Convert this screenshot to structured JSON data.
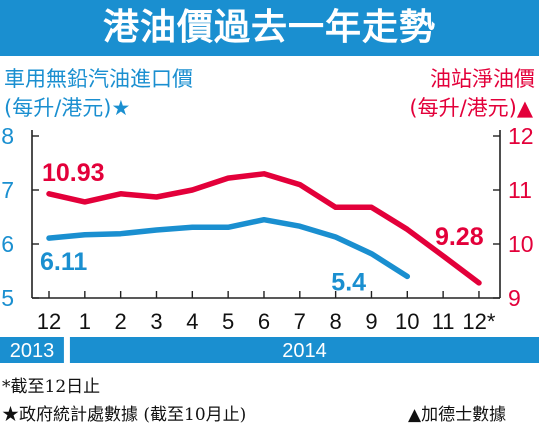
{
  "title": "港油價過去一年走勢",
  "left_axis_label": "車用無鉛汽油進口價",
  "left_axis_unit": "(每升/港元)★",
  "right_axis_label": "油站淨油價",
  "right_axis_unit": "(每升/港元)▲",
  "footnotes": {
    "star_cutoff": "*截至12日止",
    "gov_source": "★政府統計處數據 (截至10月止)",
    "tri_source": "▲加德士數據"
  },
  "colors": {
    "blue": "#1a8fd0",
    "red": "#e3003a",
    "dark": "#222222"
  },
  "chart_data": {
    "type": "line",
    "categories": [
      "12",
      "1",
      "2",
      "3",
      "4",
      "5",
      "6",
      "7",
      "8",
      "9",
      "10",
      "11",
      "12*"
    ],
    "year_bands": [
      {
        "label": "2013",
        "span": [
          "12",
          "12"
        ]
      },
      {
        "label": "2014",
        "span": [
          "1",
          "12*"
        ]
      }
    ],
    "series": [
      {
        "name": "車用無鉛汽油進口價",
        "axis": "left",
        "color": "#1a8fd0",
        "values": [
          6.11,
          6.17,
          6.19,
          6.26,
          6.31,
          6.31,
          6.45,
          6.33,
          6.13,
          5.82,
          5.4,
          null,
          null
        ],
        "start_label": "6.11",
        "end_label": "5.4"
      },
      {
        "name": "油站淨油價",
        "axis": "right",
        "color": "#e3003a",
        "values": [
          10.93,
          10.78,
          10.93,
          10.87,
          11.0,
          11.22,
          11.3,
          11.1,
          10.68,
          10.68,
          10.27,
          9.78,
          9.28
        ],
        "start_label": "10.93",
        "end_label": "9.28"
      }
    ],
    "left_axis": {
      "ylim": [
        5,
        8
      ],
      "ticks": [
        "5",
        "6",
        "7",
        "8"
      ]
    },
    "right_axis": {
      "ylim": [
        9,
        12
      ],
      "ticks": [
        "9",
        "10",
        "11",
        "12"
      ]
    }
  }
}
